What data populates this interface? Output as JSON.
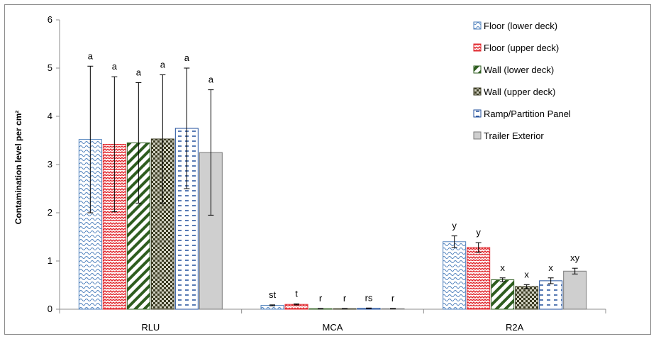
{
  "chart_data": {
    "type": "bar",
    "title": "",
    "xlabel": "",
    "ylabel": "Contamination level per cm²",
    "ylim": [
      0,
      6
    ],
    "yticks": [
      0,
      1,
      2,
      3,
      4,
      5,
      6
    ],
    "grid": false,
    "legend_position": "top-right",
    "categories": [
      "RLU",
      "MCA",
      "R2A"
    ],
    "series": [
      {
        "name": "Floor (lower deck)",
        "pattern": "wave",
        "color": "#4f81bd",
        "values": [
          3.52,
          0.08,
          1.4
        ],
        "errors": [
          1.52,
          0.01,
          0.12
        ],
        "letters": [
          "a",
          "st",
          "y"
        ]
      },
      {
        "name": "Floor (upper deck)",
        "pattern": "zigzag",
        "color": "#e0252b",
        "values": [
          3.42,
          0.1,
          1.28
        ],
        "errors": [
          1.4,
          0.01,
          0.1
        ],
        "letters": [
          "a",
          "t",
          "y"
        ]
      },
      {
        "name": "Wall (lower deck)",
        "pattern": "diagonal",
        "color": "#2e5d1f",
        "values": [
          3.45,
          0.01,
          0.61
        ],
        "errors": [
          1.25,
          0.005,
          0.04
        ],
        "letters": [
          "a",
          "r",
          "x"
        ]
      },
      {
        "name": "Wall (upper deck)",
        "pattern": "checker",
        "color": "#3a3a22",
        "values": [
          3.53,
          0.01,
          0.47
        ],
        "errors": [
          1.33,
          0.005,
          0.04
        ],
        "letters": [
          "a",
          "r",
          "x"
        ]
      },
      {
        "name": "Ramp/Partition Panel",
        "pattern": "dash",
        "color": "#1f4e9b",
        "values": [
          3.75,
          0.02,
          0.59
        ],
        "errors": [
          1.25,
          0.005,
          0.06
        ],
        "letters": [
          "a",
          "rs",
          "x"
        ]
      },
      {
        "name": "Trailer Exterior",
        "pattern": "solid",
        "color": "#cfcfcf",
        "values": [
          3.25,
          0.01,
          0.79
        ],
        "errors": [
          1.3,
          0.005,
          0.06
        ],
        "letters": [
          "a",
          "r",
          "xy"
        ]
      }
    ]
  }
}
